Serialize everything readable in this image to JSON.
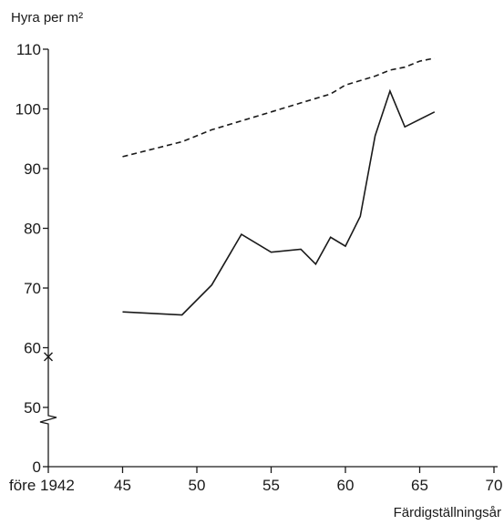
{
  "chart_data": {
    "type": "line",
    "ylabel": "Hyra per m²",
    "xlabel": "Färdigställningsår",
    "y_ticks": [
      0,
      50,
      60,
      70,
      80,
      90,
      100,
      110
    ],
    "y_axis_break": true,
    "x_ticks": [
      {
        "value": 40,
        "label": "före 1942"
      },
      {
        "value": 45,
        "label": "45"
      },
      {
        "value": 50,
        "label": "50"
      },
      {
        "value": 55,
        "label": "55"
      },
      {
        "value": 60,
        "label": "60"
      },
      {
        "value": 65,
        "label": "65"
      },
      {
        "value": 70,
        "label": "70"
      }
    ],
    "series": [
      {
        "style": "dashed",
        "x": [
          45,
          49,
          51,
          53,
          55,
          57,
          59,
          60,
          62,
          63,
          64,
          65,
          66
        ],
        "values": [
          92,
          94.5,
          96.5,
          98,
          99.5,
          101,
          102.5,
          104,
          105.5,
          106.5,
          107,
          108,
          108.5
        ]
      },
      {
        "style": "solid",
        "x": [
          45,
          49,
          51,
          53,
          55,
          57,
          58,
          59,
          60,
          61,
          62,
          63,
          64,
          66
        ],
        "values": [
          66,
          65.5,
          70.5,
          79,
          76,
          76.5,
          74,
          78.5,
          77,
          82,
          95.5,
          103,
          97,
          99.5
        ]
      }
    ],
    "markers": [
      {
        "x": 40,
        "y": 58.5,
        "symbol": "x"
      }
    ]
  }
}
